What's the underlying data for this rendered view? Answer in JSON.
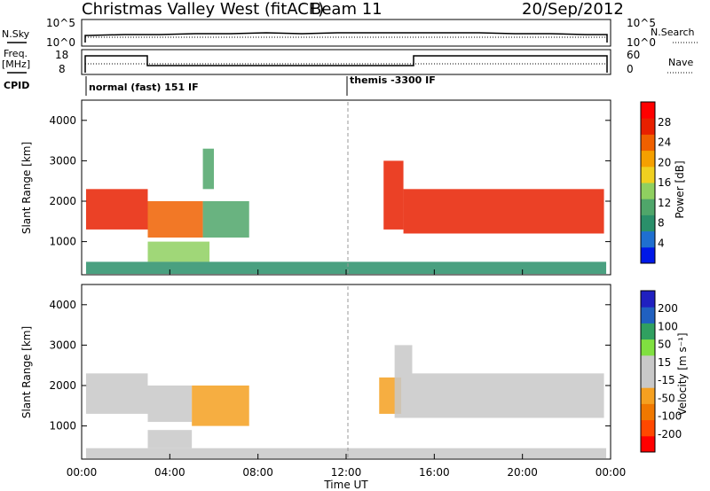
{
  "header": {
    "title": "Christmas Valley West (fitACF)",
    "beam": "Beam 11",
    "date": "20/Sep/2012"
  },
  "left_labels": {
    "nsky": "N.Sky",
    "freq": "Freq.",
    "mhz": "[MHz]",
    "cpid": "CPID"
  },
  "right_labels": {
    "nsearch": "N.Search",
    "nave": "Nave"
  },
  "noise_panel": {
    "left_ticks": [
      "10^5",
      "10^0"
    ],
    "right_ticks": [
      "10^5",
      "10^0"
    ]
  },
  "freq_panel": {
    "left_ticks": [
      "18",
      "8"
    ],
    "right_ticks": [
      "60",
      "0"
    ]
  },
  "cpid_panel": {
    "modes": [
      {
        "name": "normal (fast) 151 IF",
        "start_hour": 0
      },
      {
        "name": "themis -3300 IF",
        "start_hour": 12
      }
    ]
  },
  "colors": {
    "power": [
      "#0018e8",
      "#1f6fd0",
      "#2a8f6a",
      "#4fa66a",
      "#8fd060",
      "#f0d020",
      "#f5a000",
      "#f06000",
      "#e82000",
      "#ff0000"
    ],
    "velocity": [
      "#ff0000",
      "#ff4800",
      "#f07800",
      "#f5a020",
      "#c8c8c8",
      "#c8c8c8",
      "#80e040",
      "#30a060",
      "#2060c0",
      "#2020c0"
    ]
  },
  "chart_data": [
    {
      "type": "heatmap",
      "name_ref": "power",
      "ylabel": "Slant Range [km]",
      "y_ticks": [
        1000,
        2000,
        3000,
        4000
      ],
      "ylim": [
        180,
        4500
      ],
      "colorbar_label": "Power [dB]",
      "colorbar_ticks": [
        "28",
        "24",
        "20",
        "16",
        "12",
        "8",
        "4"
      ],
      "colorbar_range": [
        0,
        30
      ],
      "regions": [
        {
          "x": [
            0.2,
            3.0
          ],
          "y": [
            1300,
            2300
          ],
          "value": 25
        },
        {
          "x": [
            3.0,
            5.5
          ],
          "y": [
            1100,
            2000
          ],
          "value": 22
        },
        {
          "x": [
            5.5,
            7.6
          ],
          "y": [
            1100,
            2000
          ],
          "value": 10
        },
        {
          "x": [
            3.0,
            5.8
          ],
          "y": [
            500,
            1000
          ],
          "value": 12
        },
        {
          "x": [
            5.5,
            6.0
          ],
          "y": [
            2300,
            3300
          ],
          "value": 10
        },
        {
          "x": [
            13.7,
            14.6
          ],
          "y": [
            1300,
            3000
          ],
          "value": 24
        },
        {
          "x": [
            14.6,
            23.7
          ],
          "y": [
            1200,
            2300
          ],
          "value": 26
        },
        {
          "x": [
            0.2,
            23.8
          ],
          "y": [
            200,
            500
          ],
          "value": 8
        }
      ]
    },
    {
      "type": "heatmap",
      "name_ref": "velocity",
      "ylabel": "Slant Range [km]",
      "xlabel": "Time UT",
      "y_ticks": [
        1000,
        2000,
        3000,
        4000
      ],
      "ylim": [
        180,
        4500
      ],
      "x_ticks": [
        "00:00",
        "04:00",
        "08:00",
        "12:00",
        "16:00",
        "20:00",
        "00:00"
      ],
      "xlim": [
        0,
        24
      ],
      "colorbar_label": "Velocity [m s⁻¹]",
      "colorbar_ticks": [
        "200",
        "100",
        "50",
        "15",
        "-15",
        "-50",
        "-100",
        "-200"
      ],
      "colorbar_range": [
        -250,
        250
      ],
      "regions": [
        {
          "x": [
            0.2,
            3.0
          ],
          "y": [
            1300,
            2300
          ],
          "value": 0
        },
        {
          "x": [
            3.0,
            5.0
          ],
          "y": [
            1100,
            2000
          ],
          "value": 0
        },
        {
          "x": [
            5.0,
            7.6
          ],
          "y": [
            1000,
            2000
          ],
          "value": -60
        },
        {
          "x": [
            3.0,
            5.0
          ],
          "y": [
            450,
            900
          ],
          "value": 30
        },
        {
          "x": [
            13.5,
            14.5
          ],
          "y": [
            1300,
            2200
          ],
          "value": -60
        },
        {
          "x": [
            14.2,
            15.0
          ],
          "y": [
            1200,
            3000
          ],
          "value": 30
        },
        {
          "x": [
            15.0,
            23.7
          ],
          "y": [
            1200,
            2300
          ],
          "value": 0
        },
        {
          "x": [
            0.2,
            23.8
          ],
          "y": [
            200,
            450
          ],
          "value": -40
        }
      ]
    }
  ]
}
